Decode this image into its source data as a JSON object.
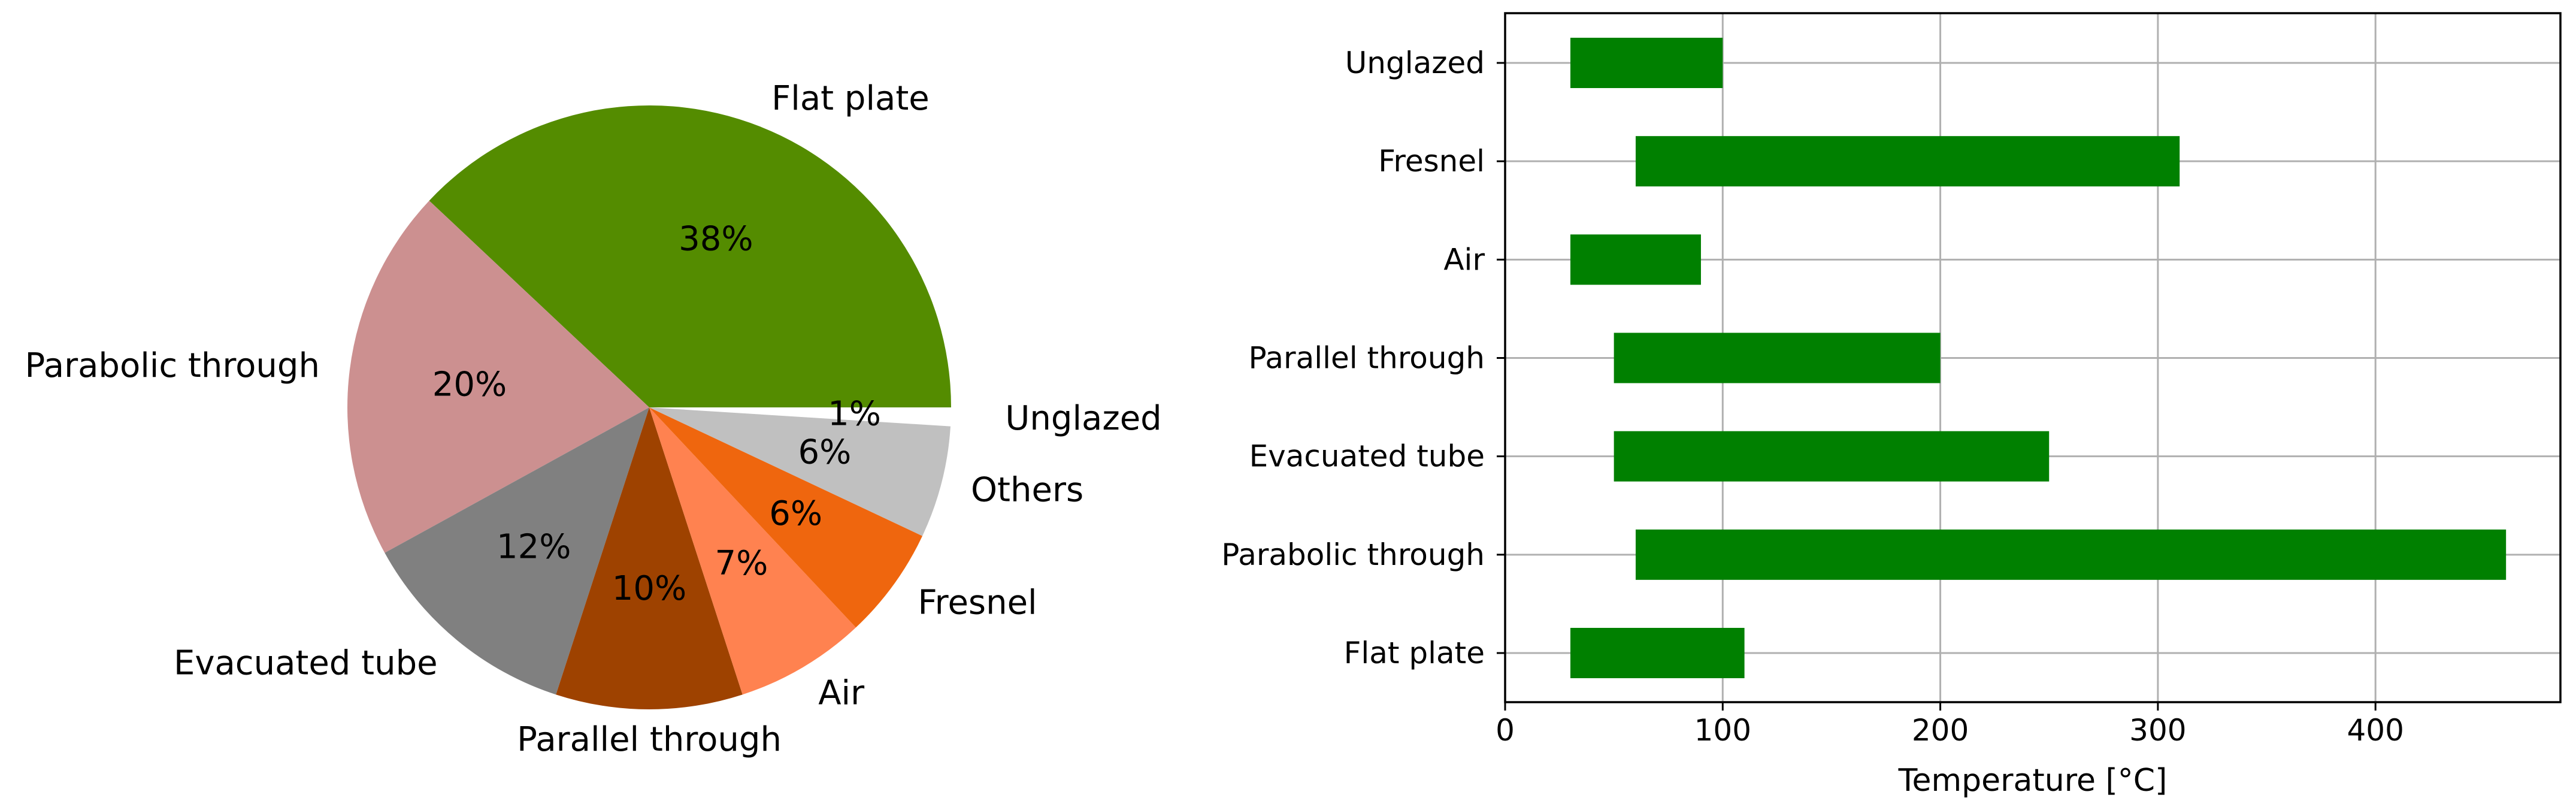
{
  "chart_data": [
    {
      "type": "pie",
      "title": "",
      "start_angle_deg": 0,
      "direction": "counterclockwise",
      "slices": [
        {
          "label": "Flat plate",
          "pct_label": "38%",
          "value": 38,
          "color": "#548c00"
        },
        {
          "label": "Parabolic through",
          "pct_label": "20%",
          "value": 20,
          "color": "#cc9090"
        },
        {
          "label": "Evacuated tube",
          "pct_label": "12%",
          "value": 12,
          "color": "#808080"
        },
        {
          "label": "Parallel through",
          "pct_label": "10%",
          "value": 10,
          "color": "#9e4200"
        },
        {
          "label": "Air",
          "pct_label": "7%",
          "value": 7,
          "color": "#ff8250"
        },
        {
          "label": "Fresnel",
          "pct_label": "6%",
          "value": 6,
          "color": "#ef660e"
        },
        {
          "label": "Others",
          "pct_label": "6%",
          "value": 6,
          "color": "#c0c0c0"
        },
        {
          "label": "Unglazed",
          "pct_label": "1%",
          "value": 1,
          "color": "#ffffff",
          "exploded": true
        }
      ]
    },
    {
      "type": "bar",
      "orientation": "horizontal",
      "title": "",
      "xlabel": "Temperature [°C]",
      "ylabel": "",
      "xlim": [
        0,
        485
      ],
      "xticks": [
        0,
        100,
        200,
        300,
        400
      ],
      "grid": true,
      "bar_color": "#008000",
      "categories": [
        "Flat plate",
        "Parabolic through",
        "Evacuated tube",
        "Parallel through",
        "Air",
        "Fresnel",
        "Unglazed"
      ],
      "ranges": [
        {
          "category": "Flat plate",
          "start": 30,
          "end": 110
        },
        {
          "category": "Parabolic through",
          "start": 60,
          "end": 460
        },
        {
          "category": "Evacuated tube",
          "start": 50,
          "end": 250
        },
        {
          "category": "Parallel through",
          "start": 50,
          "end": 200
        },
        {
          "category": "Air",
          "start": 30,
          "end": 90
        },
        {
          "category": "Fresnel",
          "start": 60,
          "end": 310
        },
        {
          "category": "Unglazed",
          "start": 30,
          "end": 100
        }
      ]
    }
  ]
}
